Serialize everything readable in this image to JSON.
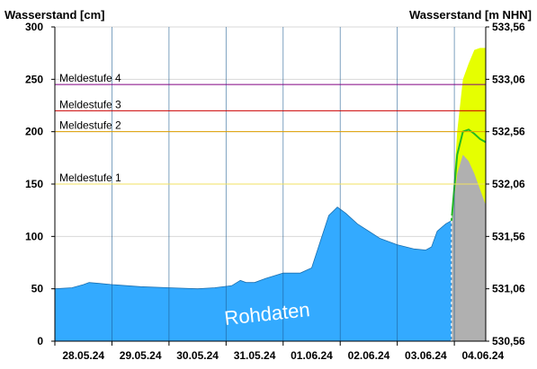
{
  "chart_data": {
    "type": "area",
    "left_axis_title": "Wasserstand [cm]",
    "right_axis_title": "Wasserstand [m NHN]",
    "ylim": [
      0,
      300
    ],
    "left_ticks": [
      "0",
      "50",
      "100",
      "150",
      "200",
      "250",
      "300"
    ],
    "right_ticks": [
      "530,56",
      "531,06",
      "531,56",
      "532,06",
      "532,56",
      "533,06",
      "533,56"
    ],
    "x_labels": [
      "28.05.24",
      "29.05.24",
      "30.05.24",
      "31.05.24",
      "01.06.24",
      "02.06.24",
      "03.06.24",
      "04.06.24"
    ],
    "x_range": [
      -0.5,
      7.05
    ],
    "watermark": "Rohdaten",
    "levels": [
      {
        "label": "Meldestufe 4",
        "value": 245,
        "color": "#800080"
      },
      {
        "label": "Meldestufe 3",
        "value": 220,
        "color": "#cc0000"
      },
      {
        "label": "Meldestufe 2",
        "value": 200,
        "color": "#e0a000"
      },
      {
        "label": "Meldestufe 1",
        "value": 150,
        "color": "#f0e060"
      }
    ],
    "measured": {
      "color": "#33aaff",
      "x": [
        -0.5,
        -0.2,
        0.0,
        0.1,
        0.3,
        0.5,
        1.0,
        1.5,
        2.0,
        2.3,
        2.6,
        2.75,
        2.85,
        3.0,
        3.2,
        3.5,
        3.8,
        4.0,
        4.15,
        4.3,
        4.45,
        4.6,
        4.8,
        5.0,
        5.2,
        5.5,
        5.8,
        6.0,
        6.1,
        6.2,
        6.35,
        6.45
      ],
      "y": [
        50,
        51,
        54,
        56,
        55,
        54,
        52,
        51,
        50,
        51,
        53,
        58,
        56,
        56,
        60,
        65,
        65,
        70,
        95,
        120,
        128,
        122,
        112,
        105,
        98,
        92,
        88,
        87,
        90,
        105,
        112,
        115
      ]
    },
    "forecast": {
      "start": 6.45,
      "x": [
        6.45,
        6.55,
        6.65,
        6.75,
        6.85,
        6.95,
        7.05
      ],
      "median": [
        115,
        178,
        200,
        202,
        198,
        193,
        190
      ],
      "upper": [
        115,
        200,
        250,
        265,
        278,
        280,
        280
      ],
      "lower": [
        115,
        145,
        150,
        150,
        145,
        140,
        130
      ],
      "gray": [
        115,
        160,
        178,
        172,
        160,
        145,
        130
      ],
      "band_color": "#e6ff00",
      "median_color": "#22bb22",
      "gray_color": "#b0b0b0"
    }
  }
}
